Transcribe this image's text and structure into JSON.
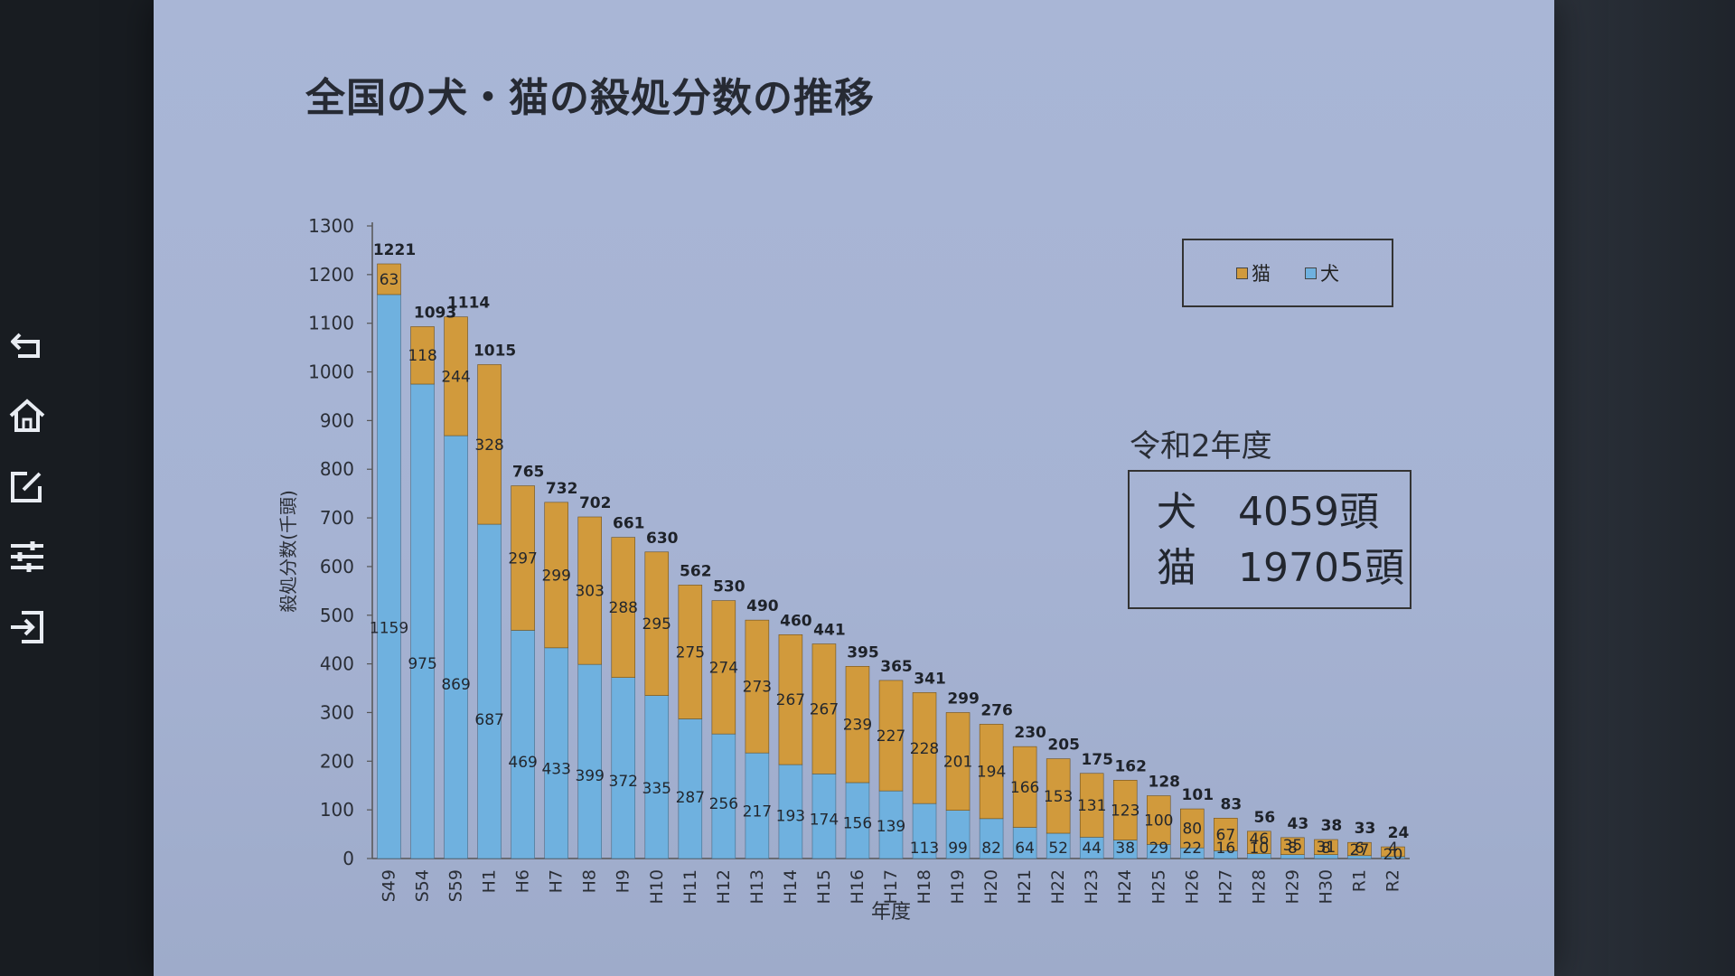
{
  "slide": {
    "title": "全国の犬・猫の殺処分数の推移"
  },
  "toolbar": {
    "icons": [
      "undo-arrow-icon",
      "home-icon",
      "edit-icon",
      "sliders-icon",
      "import-icon"
    ]
  },
  "colors": {
    "cat": "#d19a3c",
    "dog": "#6fb1df",
    "slide_bg": "#a9b6d6"
  },
  "legend": {
    "cat": "猫",
    "dog": "犬"
  },
  "stats": {
    "caption": "令和2年度",
    "rows": [
      {
        "label": "犬",
        "value": "4059頭"
      },
      {
        "label": "猫",
        "value": "19705頭"
      }
    ]
  },
  "chart_data": {
    "type": "bar",
    "stacked": true,
    "title": "全国の犬・猫の殺処分数の推移",
    "xlabel": "年度",
    "ylabel": "殺処分数(千頭)",
    "ylim": [
      0,
      1300
    ],
    "yticks": [
      0,
      100,
      200,
      300,
      400,
      500,
      600,
      700,
      800,
      900,
      1000,
      1100,
      1200,
      1300
    ],
    "legend_position": "top-right",
    "categories": [
      "S49",
      "S54",
      "S59",
      "H1",
      "H6",
      "H7",
      "H8",
      "H9",
      "H10",
      "H11",
      "H12",
      "H13",
      "H14",
      "H15",
      "H16",
      "H17",
      "H18",
      "H19",
      "H20",
      "H21",
      "H22",
      "H23",
      "H24",
      "H25",
      "H26",
      "H27",
      "H28",
      "H29",
      "H30",
      "R1",
      "R2"
    ],
    "series": [
      {
        "name": "犬",
        "values": [
          1159,
          975,
          869,
          687,
          469,
          433,
          399,
          372,
          335,
          287,
          256,
          217,
          193,
          174,
          156,
          139,
          113,
          99,
          82,
          64,
          52,
          44,
          38,
          29,
          22,
          16,
          10,
          8,
          8,
          6,
          4
        ]
      },
      {
        "name": "猫",
        "values": [
          63,
          118,
          244,
          328,
          297,
          299,
          303,
          288,
          295,
          275,
          274,
          273,
          267,
          267,
          239,
          227,
          228,
          201,
          194,
          166,
          153,
          131,
          123,
          100,
          80,
          67,
          46,
          35,
          31,
          27,
          20
        ]
      }
    ],
    "totals": [
      1221,
      1093,
      1114,
      1015,
      765,
      732,
      702,
      661,
      630,
      562,
      530,
      490,
      460,
      441,
      395,
      365,
      341,
      299,
      276,
      230,
      205,
      175,
      162,
      128,
      101,
      83,
      56,
      43,
      38,
      33,
      24
    ]
  }
}
